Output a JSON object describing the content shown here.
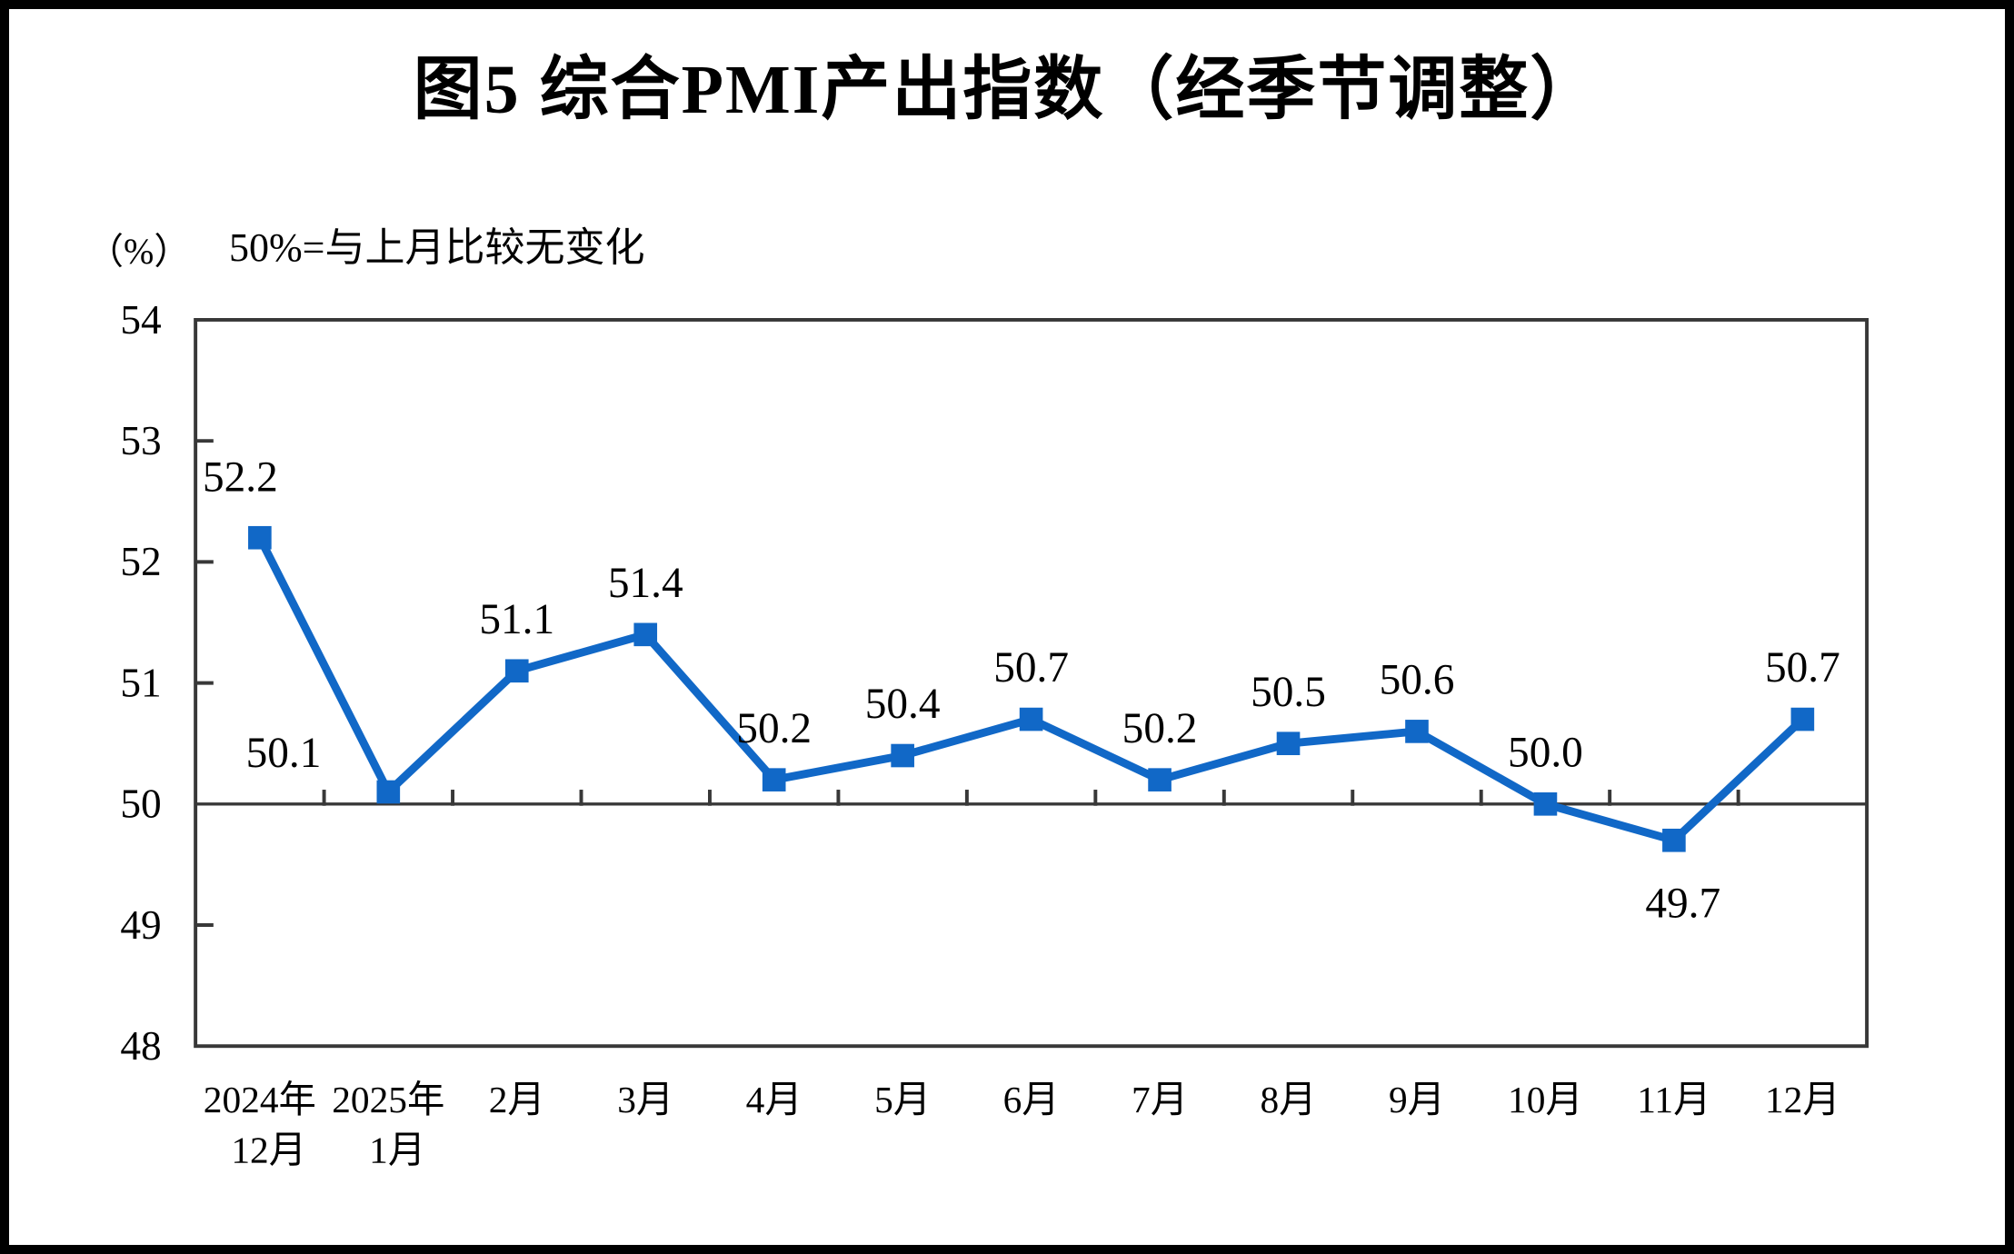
{
  "chart_data": {
    "type": "line",
    "title": "图5 综合PMI产出指数（经季节调整）",
    "unit_label": "（%）",
    "subtitle": "50%=与上月比较无变化",
    "categories": [
      "2024年\n12月",
      "2025年\n1月",
      "2月",
      "3月",
      "4月",
      "5月",
      "6月",
      "7月",
      "8月",
      "9月",
      "10月",
      "11月",
      "12月"
    ],
    "values": [
      52.2,
      50.1,
      51.1,
      51.4,
      50.2,
      50.4,
      50.7,
      50.2,
      50.5,
      50.6,
      50.0,
      49.7,
      50.7
    ],
    "data_labels": [
      "52.2",
      "50.1",
      "51.1",
      "51.4",
      "50.2",
      "50.4",
      "50.7",
      "50.2",
      "50.5",
      "50.6",
      "50.0",
      "49.7",
      "50.7"
    ],
    "label_positions": [
      "above-left",
      "left",
      "above",
      "above",
      "above",
      "above",
      "above",
      "above",
      "above",
      "above",
      "above",
      "below",
      "above"
    ],
    "ylim": [
      48,
      54
    ],
    "yticks": [
      48,
      49,
      50,
      51,
      52,
      53,
      54
    ],
    "baseline": 50,
    "grid": "off",
    "legend": "none",
    "line_color": "#1168C7",
    "marker_color": "#1168C7",
    "axis_color": "#383838"
  }
}
